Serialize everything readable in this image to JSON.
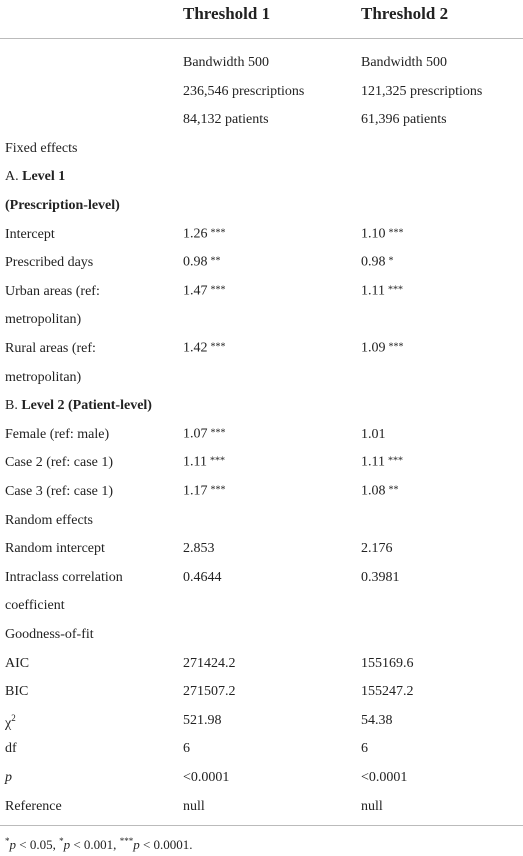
{
  "table": {
    "columns": [
      "Threshold 1",
      "Threshold 2"
    ],
    "sample": [
      [
        "Bandwidth 500",
        "Bandwidth 500"
      ],
      [
        "236,546 prescriptions",
        "121,325 prescriptions"
      ],
      [
        "84,132 patients",
        "61,396 patients"
      ]
    ],
    "rows": [
      {
        "label": [
          "Fixed effects"
        ]
      },
      {
        "prefix": "A.",
        "label": [
          "Level 1",
          "(Prescription-level)"
        ],
        "bold": true
      },
      {
        "label": [
          "Intercept"
        ],
        "cells": [
          {
            "value": "1.26",
            "sig": "***"
          },
          {
            "value": "1.10",
            "sig": "***"
          }
        ]
      },
      {
        "label": [
          "Prescribed days"
        ],
        "cells": [
          {
            "value": "0.98",
            "sig": "**"
          },
          {
            "value": "0.98",
            "sig": "*"
          }
        ]
      },
      {
        "label": [
          "Urban areas (ref:",
          "metropolitan)"
        ],
        "cells": [
          {
            "value": "1.47",
            "sig": "***"
          },
          {
            "value": "1.11",
            "sig": "***"
          }
        ]
      },
      {
        "label": [
          "Rural areas (ref:",
          "metropolitan)"
        ],
        "cells": [
          {
            "value": "1.42",
            "sig": "***"
          },
          {
            "value": "1.09",
            "sig": "***"
          }
        ]
      },
      {
        "prefix": "B.",
        "label": [
          "Level 2 (Patient-level)"
        ],
        "bold": true
      },
      {
        "label": [
          "Female (ref: male)"
        ],
        "cells": [
          {
            "value": "1.07",
            "sig": "***"
          },
          {
            "value": "1.01"
          }
        ]
      },
      {
        "label": [
          "Case 2 (ref: case 1)"
        ],
        "cells": [
          {
            "value": "1.11",
            "sig": "***"
          },
          {
            "value": "1.11",
            "sig": "***"
          }
        ]
      },
      {
        "label": [
          "Case 3 (ref: case 1)"
        ],
        "cells": [
          {
            "value": "1.17",
            "sig": "***"
          },
          {
            "value": "1.08",
            "sig": "**"
          }
        ]
      },
      {
        "label": [
          "Random effects"
        ]
      },
      {
        "label": [
          "Random intercept"
        ],
        "cells": [
          {
            "value": "2.853"
          },
          {
            "value": "2.176"
          }
        ]
      },
      {
        "label": [
          "Intraclass correlation",
          "coefficient"
        ],
        "cells": [
          {
            "value": "0.4644"
          },
          {
            "value": "0.3981"
          }
        ]
      },
      {
        "label": [
          "Goodness-of-fit"
        ]
      },
      {
        "label": [
          "AIC"
        ],
        "cells": [
          {
            "value": "271424.2"
          },
          {
            "value": "155169.6"
          }
        ]
      },
      {
        "label": [
          "BIC"
        ],
        "cells": [
          {
            "value": "271507.2"
          },
          {
            "value": "155247.2"
          }
        ]
      },
      {
        "label": [
          "χ"
        ],
        "label_sup": "2",
        "cells": [
          {
            "value": "521.98"
          },
          {
            "value": "54.38"
          }
        ]
      },
      {
        "label": [
          "df"
        ],
        "cells": [
          {
            "value": "6"
          },
          {
            "value": "6"
          }
        ]
      },
      {
        "label": [
          "p"
        ],
        "italic": true,
        "cells": [
          {
            "value": "<0.0001"
          },
          {
            "value": "<0.0001"
          }
        ]
      },
      {
        "label": [
          "Reference"
        ],
        "cells": [
          {
            "value": "null"
          },
          {
            "value": "null"
          }
        ]
      }
    ],
    "footnote": [
      {
        "mark": "*",
        "var": "p",
        "text": " < 0.05, "
      },
      {
        "mark": "*",
        "var": "p",
        "text": " < 0.001, "
      },
      {
        "mark": "***",
        "var": "p",
        "text": " < 0.0001."
      }
    ]
  }
}
